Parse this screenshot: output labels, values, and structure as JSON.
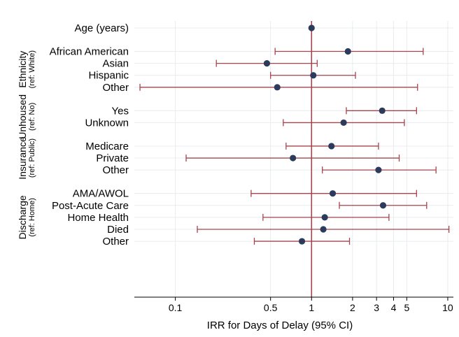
{
  "chart_data": {
    "type": "forest",
    "xlabel": "IRR for Days of Delay (95% CI)",
    "x_scale": "log",
    "xlim": [
      0.05,
      11
    ],
    "reference_line": 1,
    "x_ticks": [
      {
        "value": 0.1,
        "label": "0.1"
      },
      {
        "value": 0.5,
        "label": "0.5"
      },
      {
        "value": 1,
        "label": "1"
      },
      {
        "value": 2,
        "label": "2"
      },
      {
        "value": 3,
        "label": "3"
      },
      {
        "value": 4,
        "label": "4"
      },
      {
        "value": 5,
        "label": "5"
      },
      {
        "value": 10,
        "label": "10"
      }
    ],
    "grid": true,
    "colors": {
      "ci": "#a4444c",
      "marker": "#2c3a5c",
      "reference": "#a4444c",
      "grid": "#e8ecef"
    },
    "groups": [
      {
        "title": "",
        "subtitle": "",
        "rows": [
          {
            "label": "Age (years)",
            "est": 1.0,
            "lo": null,
            "hi": null
          }
        ]
      },
      {
        "title": "Ethnicity",
        "subtitle": "(ref: White)",
        "rows": [
          {
            "label": "African American",
            "est": 1.85,
            "lo": 0.54,
            "hi": 6.6
          },
          {
            "label": "Asian",
            "est": 0.47,
            "lo": 0.2,
            "hi": 1.1
          },
          {
            "label": "Hispanic",
            "est": 1.03,
            "lo": 0.5,
            "hi": 2.1
          },
          {
            "label": "Other",
            "est": 0.56,
            "lo": 0.055,
            "hi": 6.0
          }
        ]
      },
      {
        "title": "Unhoused",
        "subtitle": "(ref: No)",
        "rows": [
          {
            "label": "Yes",
            "est": 3.3,
            "lo": 1.8,
            "hi": 5.9
          },
          {
            "label": "Unknown",
            "est": 1.72,
            "lo": 0.62,
            "hi": 4.8
          }
        ]
      },
      {
        "title": "Insurance",
        "subtitle": "(ref: Public)",
        "rows": [
          {
            "label": "Medicare",
            "est": 1.4,
            "lo": 0.65,
            "hi": 3.1
          },
          {
            "label": "Private",
            "est": 0.73,
            "lo": 0.12,
            "hi": 4.4
          },
          {
            "label": "Other",
            "est": 3.1,
            "lo": 1.2,
            "hi": 8.2
          }
        ]
      },
      {
        "title": "Discharge",
        "subtitle": "(ref: Home)",
        "rows": [
          {
            "label": "AMA/AWOL",
            "est": 1.43,
            "lo": 0.36,
            "hi": 5.9
          },
          {
            "label": "Post-Acute Care",
            "est": 3.35,
            "lo": 1.6,
            "hi": 7.0
          },
          {
            "label": "Home Health",
            "est": 1.25,
            "lo": 0.44,
            "hi": 3.7
          },
          {
            "label": "Died",
            "est": 1.22,
            "lo": 0.145,
            "hi": 10.2
          },
          {
            "label": "Other",
            "est": 0.85,
            "lo": 0.38,
            "hi": 1.9
          }
        ]
      }
    ]
  }
}
